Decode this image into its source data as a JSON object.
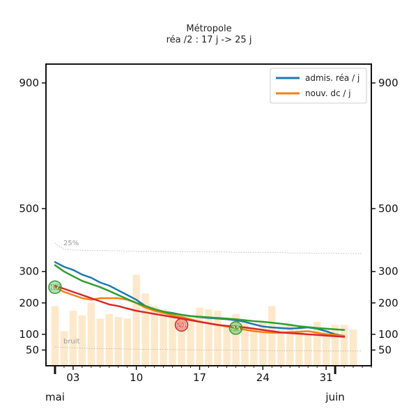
{
  "chart_data": {
    "type": "line",
    "title": "Métropole",
    "subtitle": "réa /2 : 17 j -> 25 j",
    "xlabel": "",
    "ylabel": "",
    "x_start": "2021-05-01",
    "x_end": "2021-06-03",
    "xlim": [
      "2021-04-30",
      "2021-06-05"
    ],
    "ylim": [
      0,
      960
    ],
    "y_ticks": [
      50,
      100,
      200,
      300,
      500,
      900
    ],
    "y_axis_both_sides": true,
    "grid": false,
    "legend_position": "top-right",
    "x_tick_labels": [
      {
        "date": "2021-05-03",
        "label": "03"
      },
      {
        "date": "2021-05-10",
        "label": "10"
      },
      {
        "date": "2021-05-17",
        "label": "17"
      },
      {
        "date": "2021-05-24",
        "label": "24"
      },
      {
        "date": "2021-05-31",
        "label": "31"
      }
    ],
    "month_labels": [
      {
        "date": "2021-05-01",
        "label": "mai"
      },
      {
        "date": "2021-06-01",
        "label": "juin"
      }
    ],
    "bars": {
      "color": "#fde9c9",
      "values": [
        190,
        110,
        175,
        160,
        200,
        150,
        165,
        155,
        150,
        290,
        230,
        190,
        180,
        165,
        160,
        150,
        185,
        180,
        175,
        130,
        165,
        140,
        120,
        140,
        190,
        125,
        135,
        120,
        100,
        140,
        120,
        130,
        130,
        115
      ]
    },
    "series": [
      {
        "name": "admis. réa / j",
        "color": "#1f77b4",
        "values": [
          330,
          315,
          305,
          290,
          280,
          265,
          255,
          240,
          225,
          210,
          190,
          180,
          172,
          168,
          162,
          158,
          155,
          152,
          150,
          148,
          145,
          140,
          132,
          125,
          122,
          120,
          118,
          120,
          122,
          118,
          110,
          100,
          95
        ]
      },
      {
        "name": "nouv. dc / j",
        "color": "#ff7f0e",
        "values": [
          250,
          235,
          225,
          215,
          210,
          215,
          215,
          215,
          210,
          200,
          185,
          175,
          168,
          160,
          155,
          148,
          140,
          135,
          130,
          125,
          120,
          115,
          110,
          107,
          105,
          105,
          107,
          108,
          110,
          105,
          100,
          98,
          95
        ]
      },
      {
        "name": "",
        "color": "#2ca02c",
        "values": [
          320,
          300,
          285,
          270,
          260,
          250,
          238,
          225,
          212,
          200,
          190,
          180,
          172,
          166,
          162,
          158,
          156,
          154,
          152,
          150,
          148,
          145,
          142,
          140,
          137,
          134,
          130,
          126,
          123,
          120,
          118,
          116,
          114
        ]
      },
      {
        "name": "",
        "color": "#d62728",
        "values": [
          255,
          245,
          235,
          225,
          215,
          205,
          195,
          190,
          182,
          175,
          170,
          165,
          160,
          155,
          150,
          145,
          140,
          135,
          130,
          127,
          125,
          122,
          118,
          114,
          110,
          106,
          104,
          102,
          100,
          98,
          96,
          94,
          92
        ]
      }
    ],
    "reference_lines": [
      {
        "label": "25%",
        "color": "#aaaaaa",
        "values": [
          390,
          370,
          368,
          368,
          367,
          367,
          366,
          366,
          365,
          365,
          365,
          364,
          364,
          364,
          363,
          363,
          363,
          362,
          362,
          362,
          361,
          361,
          361,
          360,
          360,
          360,
          359,
          359,
          359,
          358,
          358,
          358,
          357,
          357,
          357
        ]
      },
      {
        "label": "bruit",
        "color": "#aaaaaa",
        "values": [
          60,
          58,
          57,
          56,
          55,
          55,
          54,
          54,
          53,
          53,
          52,
          52,
          52,
          51,
          51,
          51,
          50,
          50,
          50,
          50,
          49,
          49,
          49,
          49,
          48,
          48,
          48,
          48,
          48,
          47,
          47,
          47,
          47,
          47,
          47
        ]
      }
    ],
    "markers": [
      {
        "label": "17",
        "date": "2021-05-01",
        "value": 250,
        "color": "#2ca02c"
      },
      {
        "label": "21",
        "date": "2021-05-15",
        "value": 130,
        "color": "#d62728"
      },
      {
        "label": "25",
        "date": "2021-05-21",
        "value": 120,
        "color": "#2ca02c"
      }
    ]
  }
}
